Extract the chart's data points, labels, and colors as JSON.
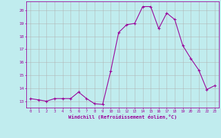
{
  "x": [
    0,
    1,
    2,
    3,
    4,
    5,
    6,
    7,
    8,
    9,
    10,
    11,
    12,
    13,
    14,
    15,
    16,
    17,
    18,
    19,
    20,
    21,
    22,
    23
  ],
  "y": [
    13.2,
    13.1,
    13.0,
    13.2,
    13.2,
    13.2,
    13.7,
    13.2,
    12.8,
    12.75,
    15.3,
    18.3,
    18.9,
    19.0,
    20.3,
    20.3,
    18.6,
    19.8,
    19.3,
    17.3,
    16.3,
    15.4,
    13.9,
    14.2
  ],
  "line_color": "#990099",
  "marker_color": "#990099",
  "bg_color": "#c0ecee",
  "grid_color": "#b0b0b0",
  "xlabel": "Windchill (Refroidissement éolien,°C)",
  "ylabel": "",
  "xlim": [
    -0.5,
    23.5
  ],
  "ylim": [
    12.5,
    20.7
  ],
  "yticks": [
    13,
    14,
    15,
    16,
    17,
    18,
    19,
    20
  ],
  "xticks": [
    0,
    1,
    2,
    3,
    4,
    5,
    6,
    7,
    8,
    9,
    10,
    11,
    12,
    13,
    14,
    15,
    16,
    17,
    18,
    19,
    20,
    21,
    22,
    23
  ],
  "tick_color": "#990099",
  "label_color": "#990099",
  "axis_color": "#990099"
}
